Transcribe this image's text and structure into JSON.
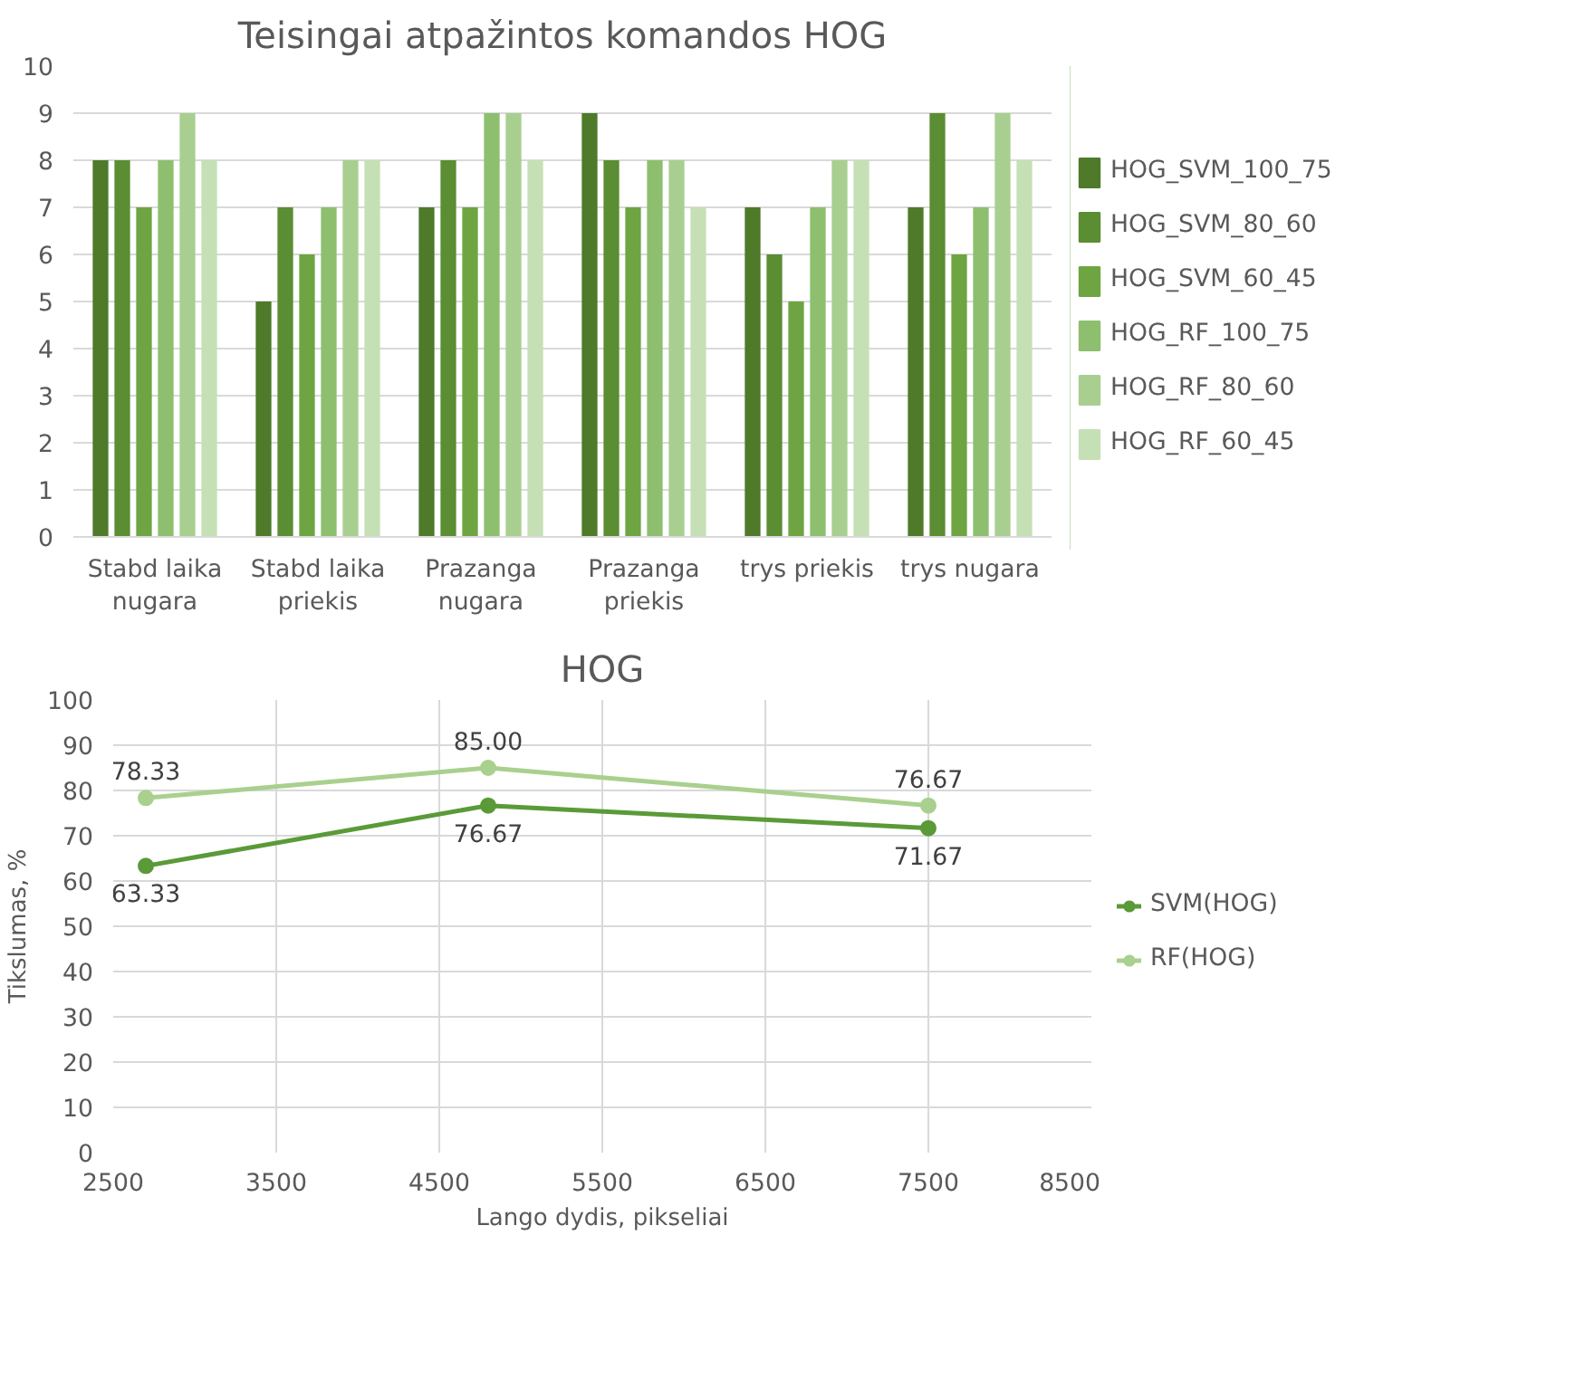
{
  "chart_data": [
    {
      "type": "bar",
      "title": "Teisingai atpažintos komandos HOG",
      "categories": [
        "Stabd laika nugara",
        "Stabd laika priekis",
        "Prazanga nugara",
        "Prazanga priekis",
        "trys priekis",
        "trys nugara"
      ],
      "series": [
        {
          "name": "HOG_SVM_100_75",
          "color": "#4e7a2a",
          "values": [
            8,
            5,
            7,
            9,
            7,
            7
          ]
        },
        {
          "name": "HOG_SVM_80_60",
          "color": "#5b8d33",
          "values": [
            8,
            7,
            8,
            8,
            6,
            9
          ]
        },
        {
          "name": "HOG_SVM_60_45",
          "color": "#6ea542",
          "values": [
            7,
            6,
            7,
            7,
            5,
            6
          ]
        },
        {
          "name": "HOG_RF_100_75",
          "color": "#8dbf6f",
          "values": [
            8,
            7,
            9,
            8,
            7,
            7
          ]
        },
        {
          "name": "HOG_RF_80_60",
          "color": "#a8cf90",
          "values": [
            9,
            8,
            9,
            8,
            8,
            9
          ]
        },
        {
          "name": "HOG_RF_60_45",
          "color": "#c6e0b6",
          "values": [
            8,
            8,
            8,
            7,
            8,
            8
          ]
        }
      ],
      "ylim": [
        0,
        10
      ],
      "yticks": [
        0,
        1,
        2,
        3,
        4,
        5,
        6,
        7,
        8,
        9,
        10
      ],
      "grid": "y",
      "legend": "right"
    },
    {
      "type": "line",
      "title": "HOG",
      "xlabel": "Lango dydis, pikseliai",
      "ylabel": "Tikslumas, %",
      "x": [
        2700,
        4800,
        7500
      ],
      "series": [
        {
          "name": "SVM(HOG)",
          "color": "#5a9a38",
          "values": [
            63.33,
            76.67,
            71.67
          ],
          "value_labels": [
            "63.33",
            "76.67",
            "71.67"
          ]
        },
        {
          "name": "RF(HOG)",
          "color": "#a9d08e",
          "values": [
            78.33,
            85.0,
            76.67
          ],
          "value_labels": [
            "78.33",
            "85.00",
            "76.67"
          ]
        }
      ],
      "xlim": [
        2500,
        8500
      ],
      "xticks": [
        2500,
        3500,
        4500,
        5500,
        6500,
        7500,
        8500
      ],
      "ylim": [
        0,
        100
      ],
      "yticks": [
        0,
        10,
        20,
        30,
        40,
        50,
        60,
        70,
        80,
        90,
        100
      ],
      "grid": true,
      "legend": "right",
      "marker": "circle",
      "line_style": "solid"
    }
  ]
}
